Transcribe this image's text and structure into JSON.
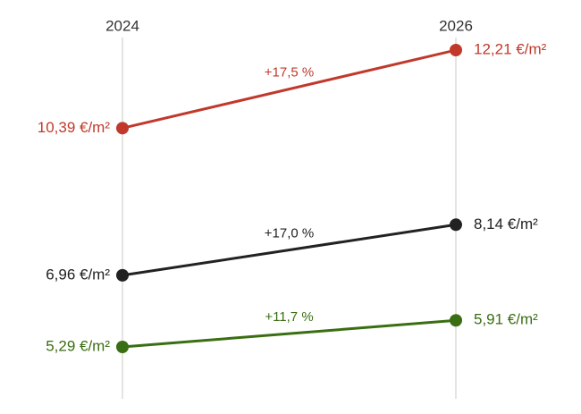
{
  "chart_data": {
    "type": "slope",
    "categories": [
      "2024",
      "2026"
    ],
    "series": [
      {
        "color": "#c0392b",
        "values": [
          10.39,
          12.21
        ],
        "value_labels": [
          "10,39 €/m²",
          "12,21 €/m²"
        ],
        "annotation": "+17,5 %"
      },
      {
        "color": "#222222",
        "values": [
          6.96,
          8.14
        ],
        "value_labels": [
          "6,96 €/m²",
          "8,14 €/m²"
        ],
        "annotation": "+17,0 %"
      },
      {
        "color": "#3a6e12",
        "values": [
          5.29,
          5.91
        ],
        "value_labels": [
          "5,29 €/m²",
          "5,91 €/m²"
        ],
        "annotation": "+11,7 %"
      }
    ]
  }
}
